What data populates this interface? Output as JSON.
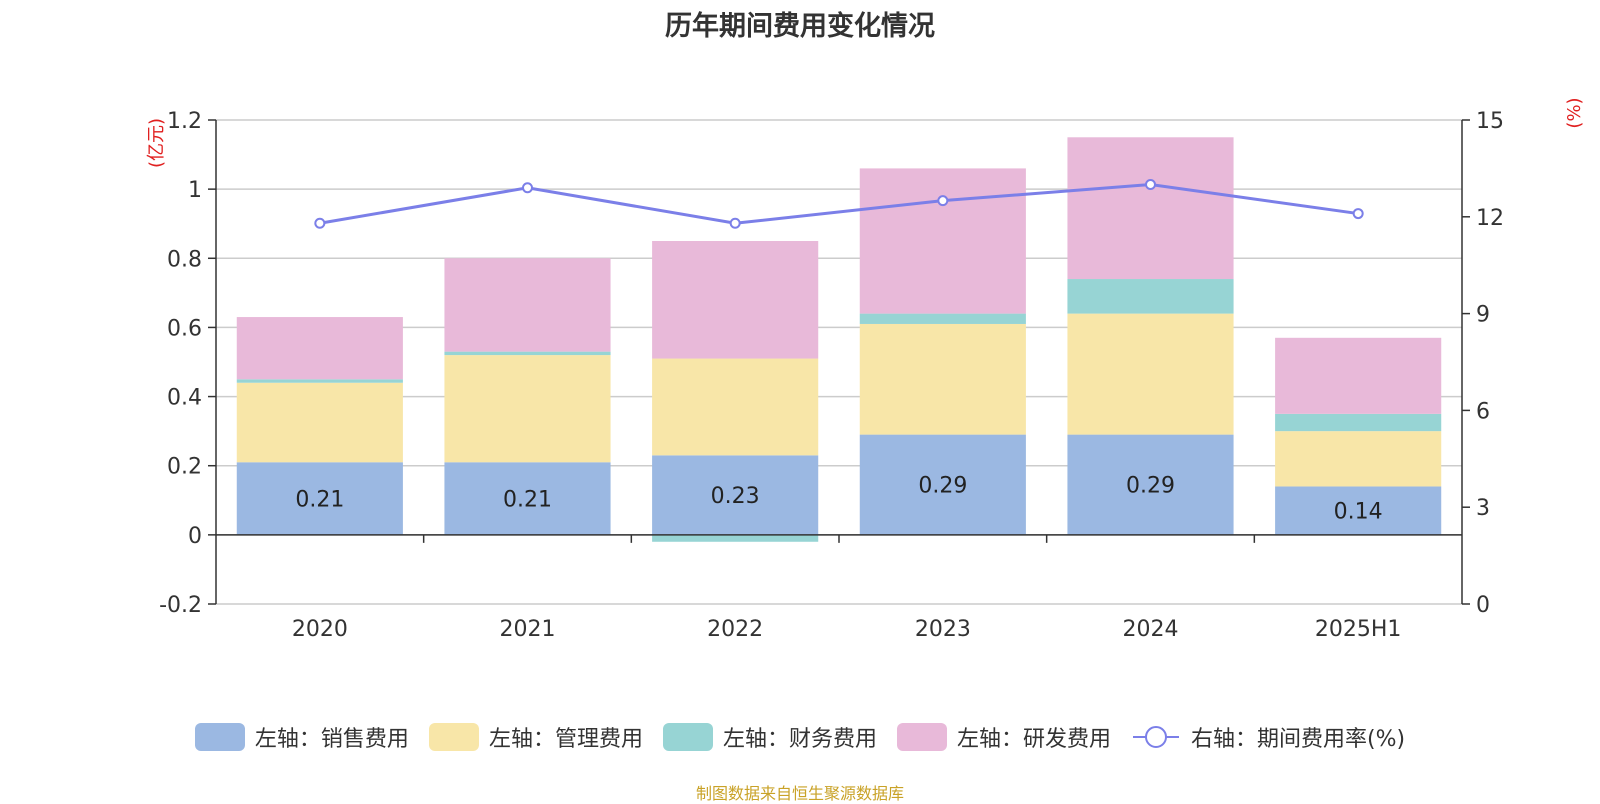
{
  "chart_data": {
    "type": "bar",
    "title": "历年期间费用变化情况",
    "categories": [
      "2020",
      "2021",
      "2022",
      "2023",
      "2024",
      "2025H1"
    ],
    "left_axis": {
      "unit": "(亿元)",
      "ylim": [
        -0.2,
        1.2
      ],
      "ticks": [
        "-0.2",
        "0",
        "0.2",
        "0.4",
        "0.6",
        "0.8",
        "1",
        "1.2"
      ]
    },
    "right_axis": {
      "unit": "(%)",
      "ylim": [
        0,
        15
      ],
      "ticks": [
        "0",
        "3",
        "6",
        "9",
        "12",
        "15"
      ]
    },
    "series": [
      {
        "name": "左轴：销售费用",
        "type": "bar",
        "color": "#9bb8e2",
        "values": [
          0.21,
          0.21,
          0.23,
          0.29,
          0.29,
          0.14
        ],
        "labels": [
          "0.21",
          "0.21",
          "0.23",
          "0.29",
          "0.29",
          "0.14"
        ]
      },
      {
        "name": "左轴：管理费用",
        "type": "bar",
        "color": "#f8e6a8",
        "values": [
          0.23,
          0.31,
          0.28,
          0.32,
          0.35,
          0.16
        ]
      },
      {
        "name": "左轴：财务费用",
        "type": "bar",
        "color": "#97d4d4",
        "values": [
          0.01,
          0.01,
          -0.02,
          0.03,
          0.1,
          0.05
        ]
      },
      {
        "name": "左轴：研发费用",
        "type": "bar",
        "color": "#e8b9d9",
        "values": [
          0.18,
          0.27,
          0.34,
          0.42,
          0.41,
          0.22
        ]
      },
      {
        "name": "右轴：期间费用率(%)",
        "type": "line",
        "color": "#7b7fe8",
        "values": [
          11.8,
          12.9,
          11.8,
          12.5,
          13.0,
          12.1
        ]
      }
    ],
    "grid": true,
    "legend_position": "bottom"
  },
  "source": "制图数据来自恒生聚源数据库"
}
